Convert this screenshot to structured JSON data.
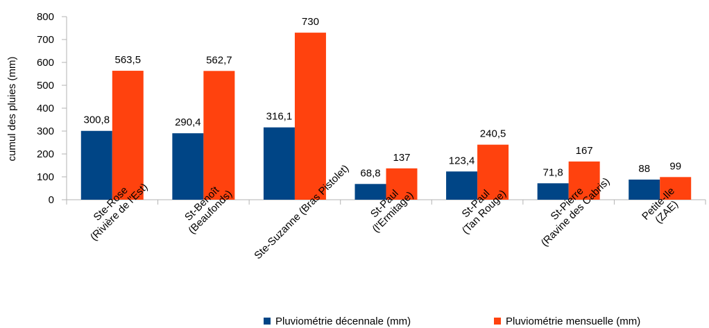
{
  "chart_data": {
    "type": "bar",
    "title": "",
    "xlabel": "",
    "ylabel": "cumul des pluies (mm)",
    "ylim": [
      0,
      800
    ],
    "yticks": [
      "0",
      "100",
      "200",
      "300",
      "400",
      "500",
      "600",
      "700",
      "800"
    ],
    "grid": false,
    "legend_position": "bottom-right",
    "categories": [
      [
        "Ste-Rose",
        "(Rivière de l'Est)"
      ],
      [
        "St-Benoît",
        "(Beaufonds)"
      ],
      [
        "Ste-Suzanne (Bras Pistolet)"
      ],
      [
        "St-Paul",
        "(l'Ermitage)"
      ],
      [
        "St-Paul",
        "(Tan Rouge)"
      ],
      [
        "St-Pierre",
        "(Ravine des Cabris)"
      ],
      [
        "Petite-Ile",
        "(ZAE)"
      ]
    ],
    "series": [
      {
        "name": "Pluviométrie décennale (mm)",
        "color": "#004586",
        "values": [
          300.8,
          290.4,
          316.1,
          68.8,
          123.4,
          71.8,
          88
        ],
        "labels": [
          "300,8",
          "290,4",
          "316,1",
          "68,8",
          "123,4",
          "71,8",
          "88"
        ]
      },
      {
        "name": "Pluviométrie mensuelle (mm)",
        "color": "#ff420e",
        "values": [
          563.5,
          562.7,
          730,
          137,
          240.5,
          167,
          99
        ],
        "labels": [
          "563,5",
          "562,7",
          "730",
          "137",
          "240,5",
          "167",
          "99"
        ]
      }
    ]
  }
}
